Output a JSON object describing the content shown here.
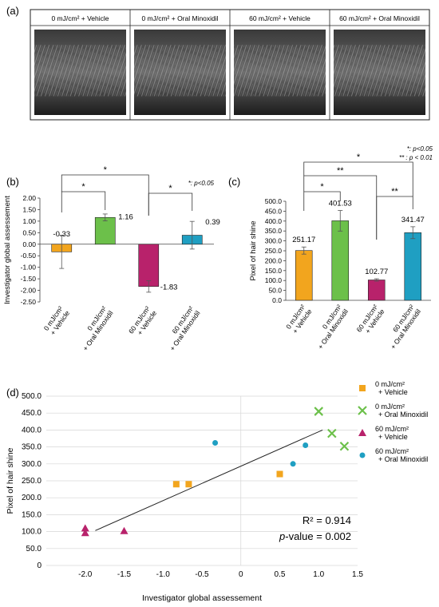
{
  "panel_a": {
    "label": "(a)",
    "columns": [
      {
        "label": "0 mJ/cm² + Vehicle"
      },
      {
        "label": "0 mJ/cm² + Oral Minoxidil"
      },
      {
        "label": "60 mJ/cm² + Vehicle"
      },
      {
        "label": "60 mJ/cm² + Oral Minoxidil"
      }
    ]
  },
  "significance_note_b": "*: p<0.05",
  "significance_note_c": [
    "*: p<0.05",
    "** : p < 0.01"
  ],
  "colors": {
    "orange": "#f2a51e",
    "green": "#6cc04a",
    "magenta": "#b8226b",
    "teal": "#1f9fc2"
  },
  "chart_data": [
    {
      "id": "b",
      "panel_label": "(b)",
      "type": "bar",
      "categories": [
        [
          "0 mJ/cm²",
          "+ Vehicle"
        ],
        [
          "0 mJ/cm²",
          "+ Oral Minoxidil"
        ],
        [
          "60 mJ/cm²",
          "+ Vehicle"
        ],
        [
          "60 mJ/cm²",
          "+ Oral Minoxidil"
        ]
      ],
      "values": [
        -0.33,
        1.16,
        -1.83,
        0.39
      ],
      "value_labels": [
        "-0.33",
        "1.16",
        "-1.83",
        "0.39"
      ],
      "errors": [
        0.72,
        0.15,
        0.25,
        0.6
      ],
      "ylabel": "Investigator global assessement",
      "ylim": [
        -2.5,
        2.0
      ],
      "yticks": [
        "-2.50",
        "-2.00",
        "-1.50",
        "-1.00",
        "-0.50",
        "0.00",
        "0.50",
        "1.00",
        "1.50",
        "2.00"
      ],
      "brackets": [
        {
          "from": 0,
          "to": 1,
          "label": "*"
        },
        {
          "from": 0,
          "to": 2,
          "label": "*"
        },
        {
          "from": 2,
          "to": 3,
          "label": "*"
        }
      ]
    },
    {
      "id": "c",
      "panel_label": "(c)",
      "type": "bar",
      "categories": [
        [
          "0 mJ/cm²",
          "+ Vehicle"
        ],
        [
          "0 mJ/cm²",
          "+ Oral Minoxidil"
        ],
        [
          "60 mJ/cm²",
          "+ Vehicle"
        ],
        [
          "60 mJ/cm²",
          "+ Oral Minoxidil"
        ]
      ],
      "values": [
        251.17,
        401.53,
        102.77,
        341.47
      ],
      "value_labels": [
        "251.17",
        "401.53",
        "102.77",
        "341.47"
      ],
      "errors": [
        18,
        52,
        6,
        30
      ],
      "ylabel": "Pixel of hair shine",
      "ylim": [
        0,
        500
      ],
      "yticks": [
        "0.0",
        "50.0",
        "100.0",
        "150.0",
        "200.0",
        "250.0",
        "300.0",
        "350.0",
        "400.0",
        "450.0",
        "500.0"
      ],
      "brackets": [
        {
          "from": 0,
          "to": 1,
          "label": "*"
        },
        {
          "from": 0,
          "to": 2,
          "label": "**"
        },
        {
          "from": 2,
          "to": 3,
          "label": "**"
        },
        {
          "from": 0,
          "to": 3,
          "label": "*"
        }
      ]
    },
    {
      "id": "d",
      "panel_label": "(d)",
      "type": "scatter",
      "xlabel": "Investigator global assessement",
      "ylabel": "Pixel of hair shine",
      "xlim": [
        -2.5,
        1.5
      ],
      "ylim": [
        0,
        500
      ],
      "xticks": [
        "-2.0",
        "-1.5",
        "-1.0",
        "-0.5",
        "0",
        "0.5",
        "1.0",
        "1.5"
      ],
      "yticks": [
        "0",
        "50.0",
        "100.0",
        "150.0",
        "200.0",
        "250.0",
        "300.0",
        "350.0",
        "400.0",
        "450.0",
        "500.0"
      ],
      "series": [
        {
          "name": "0 mJ/cm² + Vehicle",
          "legend": [
            "0 mJ/cm²",
            "+ Vehicle"
          ],
          "marker": "square",
          "points": [
            [
              -0.83,
              240
            ],
            [
              -0.67,
              240
            ],
            [
              0.5,
              270
            ]
          ]
        },
        {
          "name": "0 mJ/cm² + Oral Minoxidil",
          "legend": [
            "0 mJ/cm²",
            "+ Oral Minoxidil"
          ],
          "marker": "x",
          "points": [
            [
              1.0,
              455
            ],
            [
              1.17,
              390
            ],
            [
              1.33,
              352
            ]
          ]
        },
        {
          "name": "60 mJ/cm² + Vehicle",
          "legend": [
            "60 mJ/cm²",
            "+ Vehicle"
          ],
          "marker": "triangle",
          "points": [
            [
              -2.0,
              110
            ],
            [
              -2.0,
              96
            ],
            [
              -1.5,
              102
            ]
          ]
        },
        {
          "name": "60 mJ/cm² + Oral Minoxidil",
          "legend": [
            "60 mJ/cm²",
            "+ Oral Minoxidil"
          ],
          "marker": "circle",
          "points": [
            [
              -0.33,
              362
            ],
            [
              0.67,
              300
            ],
            [
              0.83,
              355
            ]
          ]
        }
      ],
      "trendline": [
        [
          -1.87,
          103
        ],
        [
          1.05,
          400
        ]
      ],
      "r2": "R² = 0.914",
      "pvalue_label": "p-value = 0.002"
    }
  ]
}
